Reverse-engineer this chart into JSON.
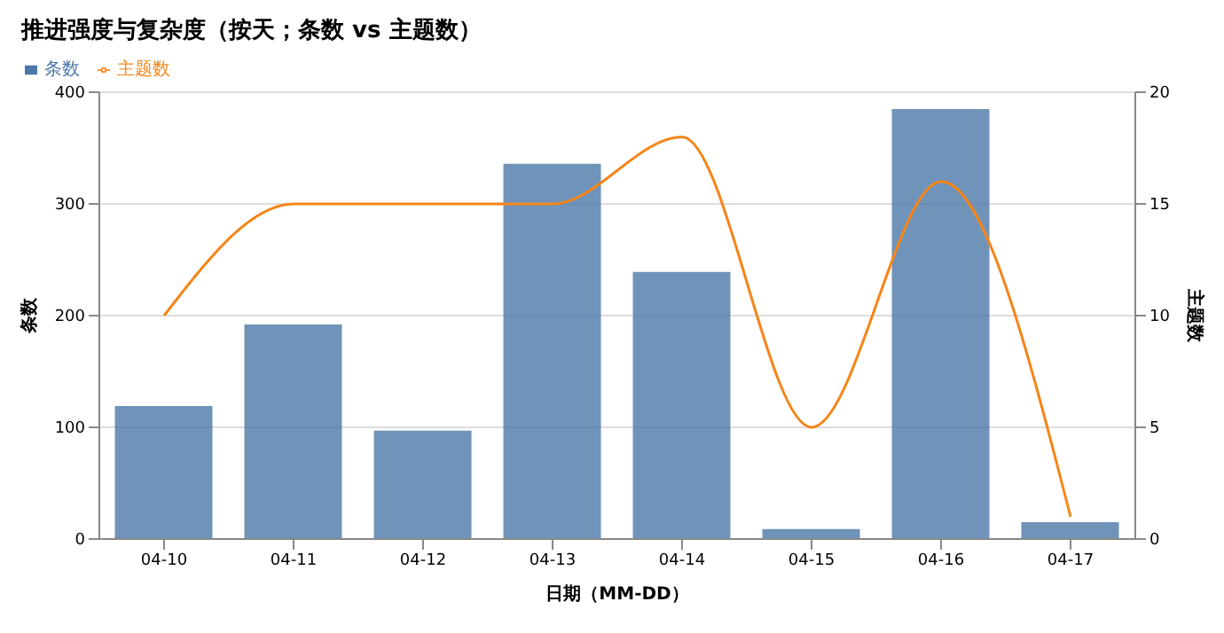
{
  "chart_data": {
    "type": "bar",
    "title": "推进强度与复杂度（按天；条数 vs 主题数）",
    "xlabel": "日期（MM-DD）",
    "ylabel": "条数",
    "y2label": "主题数",
    "categories": [
      "04-10",
      "04-11",
      "04-12",
      "04-13",
      "04-14",
      "04-15",
      "04-16",
      "04-17"
    ],
    "series": [
      {
        "name": "条数",
        "color": "#4c78a8",
        "values": [
          119,
          192,
          97,
          336,
          239,
          9,
          385,
          15
        ]
      },
      {
        "name": "主题数",
        "type": "line",
        "axis": "y2",
        "color": "#f58518",
        "marker": "none",
        "values": [
          10,
          15,
          15,
          15,
          18,
          5,
          16,
          1
        ]
      }
    ],
    "ylim": [
      0,
      400
    ],
    "yticks": [
      0,
      100,
      200,
      300,
      400
    ],
    "y2lim": [
      0,
      20
    ],
    "y2ticks": [
      0,
      5,
      10,
      15,
      20
    ],
    "grid": "y",
    "legend": "top left"
  }
}
